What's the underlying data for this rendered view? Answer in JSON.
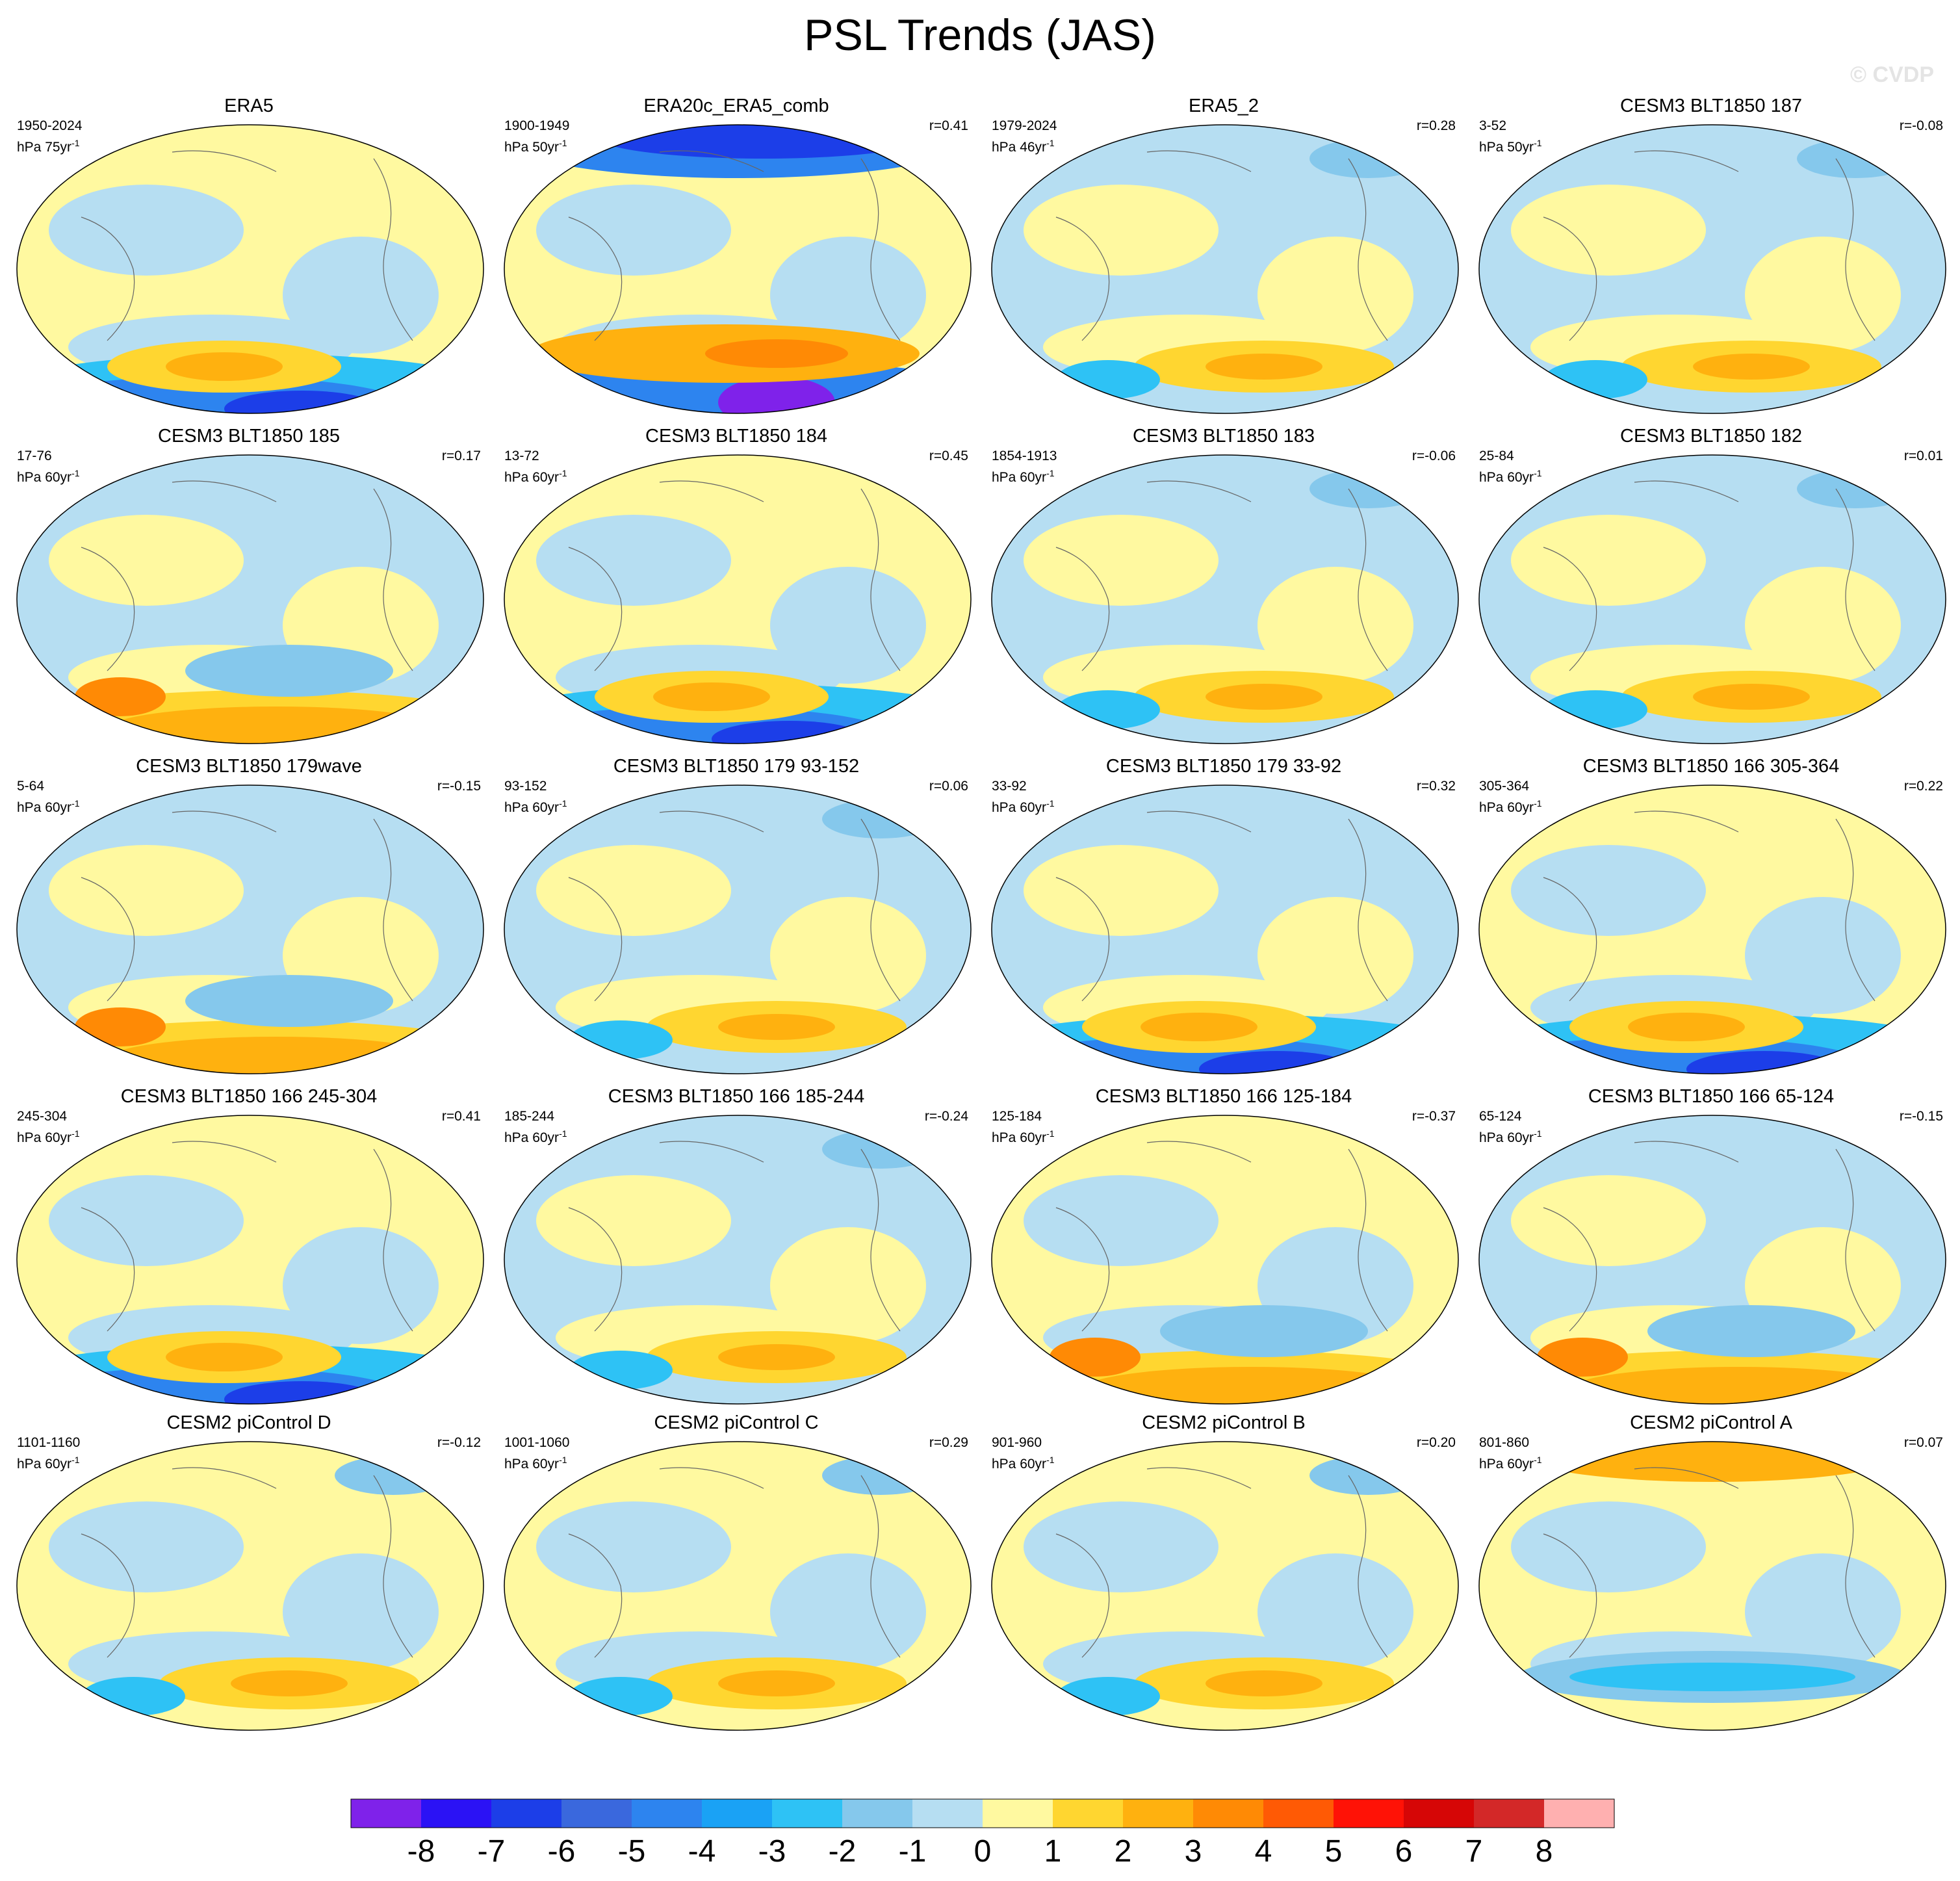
{
  "title": "PSL Trends (JAS)",
  "copyright": "© CVDP",
  "colorbar": {
    "colors": [
      "#7f22ea",
      "#2b12f5",
      "#1c3ee8",
      "#3a68dd",
      "#2d84ef",
      "#1aa2f5",
      "#2ec2f5",
      "#85c8ec",
      "#b6def2",
      "#fff9a0",
      "#ffd630",
      "#ffb10f",
      "#ff8a05",
      "#ff5a05",
      "#ff1206",
      "#d60606",
      "#d32828",
      "#ffb0b0"
    ],
    "labels": [
      "-8",
      "-7",
      "-6",
      "-5",
      "-4",
      "-3",
      "-2",
      "-1",
      "0",
      "1",
      "2",
      "3",
      "4",
      "5",
      "6",
      "7",
      "8"
    ]
  },
  "panels": [
    {
      "title": "ERA5",
      "period": "1950-2024",
      "units": "hPa 75yr",
      "corr": "",
      "fill": "#fff9a0",
      "pattern": "south-blue"
    },
    {
      "title": "ERA20c_ERA5_comb",
      "period": "1900-1949",
      "units": "hPa 50yr",
      "corr": "r=0.41",
      "fill": "#fff9a0",
      "pattern": "north-deep"
    },
    {
      "title": "ERA5_2",
      "period": "1979-2024",
      "units": "hPa 46yr",
      "corr": "r=0.28",
      "fill": "#b6def2",
      "pattern": "mixed"
    },
    {
      "title": "CESM3 BLT1850 187",
      "period": "3-52",
      "units": "hPa 50yr",
      "corr": "r=-0.08",
      "fill": "#b6def2",
      "pattern": "mixed"
    },
    {
      "title": "CESM3 BLT1850 185",
      "period": "17-76",
      "units": "hPa 60yr",
      "corr": "r=0.17",
      "fill": "#b6def2",
      "pattern": "south-orange"
    },
    {
      "title": "CESM3 BLT1850 184",
      "period": "13-72",
      "units": "hPa 60yr",
      "corr": "r=0.45",
      "fill": "#fff9a0",
      "pattern": "south-blue"
    },
    {
      "title": "CESM3 BLT1850 183",
      "period": "1854-1913",
      "units": "hPa 60yr",
      "corr": "r=-0.06",
      "fill": "#b6def2",
      "pattern": "mixed"
    },
    {
      "title": "CESM3 BLT1850 182",
      "period": "25-84",
      "units": "hPa 60yr",
      "corr": "r=0.01",
      "fill": "#b6def2",
      "pattern": "mixed"
    },
    {
      "title": "CESM3 BLT1850 179wave",
      "period": "5-64",
      "units": "hPa 60yr",
      "corr": "r=-0.15",
      "fill": "#b6def2",
      "pattern": "south-orange"
    },
    {
      "title": "CESM3 BLT1850 179 93-152",
      "period": "93-152",
      "units": "hPa 60yr",
      "corr": "r=0.06",
      "fill": "#b6def2",
      "pattern": "mixed"
    },
    {
      "title": "CESM3 BLT1850 179 33-92",
      "period": "33-92",
      "units": "hPa 60yr",
      "corr": "r=0.32",
      "fill": "#b6def2",
      "pattern": "south-blue"
    },
    {
      "title": "CESM3 BLT1850 166 305-364",
      "period": "305-364",
      "units": "hPa 60yr",
      "corr": "r=0.22",
      "fill": "#fff9a0",
      "pattern": "south-blue"
    },
    {
      "title": "CESM3 BLT1850 166 245-304",
      "period": "245-304",
      "units": "hPa 60yr",
      "corr": "r=0.41",
      "fill": "#fff9a0",
      "pattern": "south-blue"
    },
    {
      "title": "CESM3 BLT1850 166 185-244",
      "period": "185-244",
      "units": "hPa 60yr",
      "corr": "r=-0.24",
      "fill": "#b6def2",
      "pattern": "mixed"
    },
    {
      "title": "CESM3 BLT1850 166 125-184",
      "period": "125-184",
      "units": "hPa 60yr",
      "corr": "r=-0.37",
      "fill": "#fff9a0",
      "pattern": "south-orange"
    },
    {
      "title": "CESM3 BLT1850 166 65-124",
      "period": "65-124",
      "units": "hPa 60yr",
      "corr": "r=-0.15",
      "fill": "#b6def2",
      "pattern": "south-orange"
    },
    {
      "title": "CESM2 piControl D",
      "period": "1101-1160",
      "units": "hPa 60yr",
      "corr": "r=-0.12",
      "fill": "#fff9a0",
      "pattern": "mixed"
    },
    {
      "title": "CESM2 piControl C",
      "period": "1001-1060",
      "units": "hPa 60yr",
      "corr": "r=0.29",
      "fill": "#fff9a0",
      "pattern": "mixed"
    },
    {
      "title": "CESM2 piControl B",
      "period": "901-960",
      "units": "hPa 60yr",
      "corr": "r=0.20",
      "fill": "#fff9a0",
      "pattern": "mixed"
    },
    {
      "title": "CESM2 piControl A",
      "period": "801-860",
      "units": "hPa 60yr",
      "corr": "r=0.07",
      "fill": "#fff9a0",
      "pattern": "north-orange"
    }
  ]
}
